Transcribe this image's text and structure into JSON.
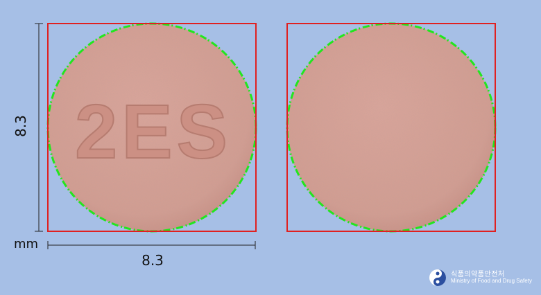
{
  "image": {
    "background_color": "#a6bfe6",
    "frame_color": "#e02020",
    "outline_color": "#22e61e",
    "tablet_color": "#d79f93"
  },
  "front": {
    "imprint": "2ES"
  },
  "dimensions": {
    "height": "8.3",
    "width": "8.3",
    "unit": "mm"
  },
  "logo": {
    "korean": "식품의약품안전처",
    "english": "Ministry of Food and Drug Safety",
    "icon": "mfds-emblem-icon"
  }
}
